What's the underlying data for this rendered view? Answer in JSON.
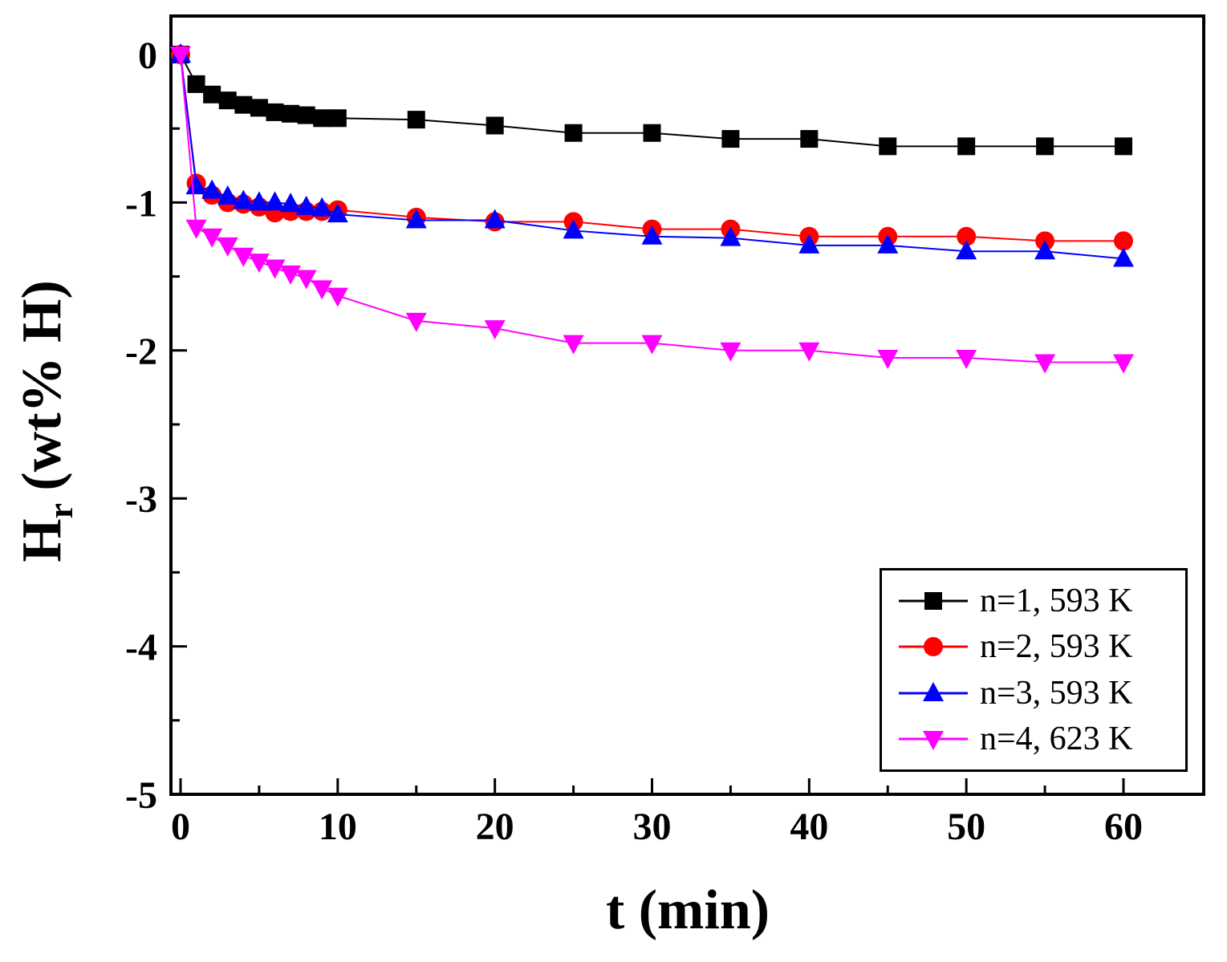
{
  "figure": {
    "xlabel": "t (min)",
    "ylabel": "H_r (wt% H)",
    "ylabel_main": "H",
    "ylabel_sub": "r",
    "ylabel_rest": "(wt% H)"
  },
  "chart_data": {
    "type": "line",
    "title": "",
    "xlabel": "t (min)",
    "ylabel": "H_r (wt% H)",
    "xlim": [
      -0.6,
      65
    ],
    "ylim": [
      -5,
      0.26
    ],
    "grid": false,
    "legend_position": "lower right",
    "x_ticks": [
      0,
      10,
      20,
      30,
      40,
      50,
      60
    ],
    "x_minor_ticks": [
      5,
      15,
      25,
      35,
      45,
      55
    ],
    "y_ticks": [
      0,
      -1,
      -2,
      -3,
      -4,
      -5
    ],
    "y_minor_ticks": [
      -0.5,
      -1.5,
      -2.5,
      -3.5,
      -4.5
    ],
    "x": [
      0,
      1,
      2,
      3,
      4,
      5,
      6,
      7,
      8,
      9,
      10,
      15,
      20,
      25,
      30,
      35,
      40,
      45,
      50,
      55,
      60
    ],
    "series": [
      {
        "name": "n=1, 593 K",
        "color": "#000000",
        "marker": "square",
        "values": [
          0,
          -0.2,
          -0.27,
          -0.31,
          -0.34,
          -0.36,
          -0.39,
          -0.4,
          -0.41,
          -0.43,
          -0.43,
          -0.44,
          -0.48,
          -0.53,
          -0.53,
          -0.57,
          -0.57,
          -0.62,
          -0.62,
          -0.62,
          -0.62
        ]
      },
      {
        "name": "n=2, 593 K",
        "color": "#ff0000",
        "marker": "circle",
        "values": [
          0,
          -0.87,
          -0.95,
          -1.0,
          -1.01,
          -1.03,
          -1.07,
          -1.06,
          -1.06,
          -1.06,
          -1.05,
          -1.1,
          -1.13,
          -1.13,
          -1.18,
          -1.18,
          -1.23,
          -1.23,
          -1.23,
          -1.26,
          -1.26
        ]
      },
      {
        "name": "n=3, 593 K",
        "color": "#0000ff",
        "marker": "triangle-up",
        "values": [
          0,
          -0.89,
          -0.92,
          -0.96,
          -0.99,
          -1.0,
          -1.0,
          -1.01,
          -1.03,
          -1.04,
          -1.08,
          -1.12,
          -1.12,
          -1.19,
          -1.23,
          -1.24,
          -1.29,
          -1.29,
          -1.33,
          -1.33,
          -1.38
        ]
      },
      {
        "name": "n=4, 623 K",
        "color": "#ff00ff",
        "marker": "triangle-down",
        "values": [
          0,
          -1.17,
          -1.23,
          -1.29,
          -1.36,
          -1.4,
          -1.44,
          -1.48,
          -1.51,
          -1.58,
          -1.63,
          -1.8,
          -1.85,
          -1.95,
          -1.95,
          -2.0,
          -2.0,
          -2.05,
          -2.05,
          -2.08,
          -2.08
        ]
      }
    ]
  }
}
